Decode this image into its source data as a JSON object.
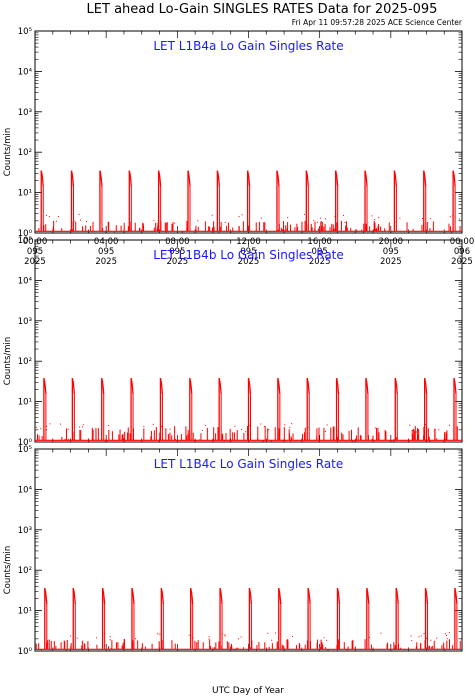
{
  "title": "LET ahead Lo-Gain SINGLES RATES Data for 2025-095",
  "timestamp": "Fri Apr 11 09:57:28 2025 ACE Science Center",
  "xlabel": "UTC Day of Year",
  "ylabel": "Counts/min",
  "colors": {
    "series": "#ff0000",
    "panel_title": "#1a1aff",
    "axes": "#000000"
  },
  "chart_data": [
    {
      "type": "line",
      "title": "LET L1B4a Lo Gain Singles Rate",
      "ylabel": "Counts/min",
      "yscale": "log",
      "ylim": [
        1,
        100000
      ],
      "xlim": [
        0,
        24
      ],
      "ytick_labels": [
        "10⁰",
        "10¹",
        "10²",
        "10³",
        "10⁴",
        "10⁵"
      ],
      "x_tick_labels": [
        [
          "00:00",
          "095",
          "2025"
        ],
        [
          "04:00",
          "095",
          "2025"
        ],
        [
          "08:00",
          "095",
          "2025"
        ],
        [
          "12:00",
          "095",
          "2025"
        ],
        [
          "16:00",
          "095",
          "2025"
        ],
        [
          "20:00",
          "095",
          "2025"
        ],
        [
          "00:00",
          "096",
          "2025"
        ]
      ],
      "spike_hours": [
        0.35,
        2.05,
        3.65,
        5.3,
        6.95,
        8.6,
        10.25,
        11.95,
        13.6,
        15.25,
        16.9,
        18.55,
        20.2,
        21.85,
        23.5
      ],
      "spike_peak": 35,
      "baseline": 1.1,
      "noise_peak": 2.0
    },
    {
      "type": "line",
      "title": "LET L1B4b Lo Gain Singles Rate",
      "ylabel": "Counts/min",
      "yscale": "log",
      "ylim": [
        1,
        100000
      ],
      "xlim": [
        0,
        24
      ],
      "ytick_labels": [
        "10⁰",
        "10¹",
        "10²",
        "10³",
        "10⁴",
        "10⁵"
      ],
      "x_tick_labels": [],
      "spike_hours": [
        0.5,
        2.1,
        3.75,
        5.4,
        7.05,
        8.7,
        10.35,
        12.0,
        13.65,
        15.3,
        16.95,
        18.6,
        20.25,
        21.9,
        23.55
      ],
      "spike_peak": 38,
      "baseline": 1.1,
      "noise_peak": 2.5
    },
    {
      "type": "line",
      "title": "LET L1B4c Lo Gain Singles Rate",
      "ylabel": "Counts/min",
      "yscale": "log",
      "ylim": [
        1,
        100000
      ],
      "xlim": [
        0,
        24
      ],
      "ytick_labels": [
        "10⁰",
        "10¹",
        "10²",
        "10³",
        "10⁴",
        "10⁵"
      ],
      "x_tick_labels": [],
      "spike_hours": [
        0.55,
        2.15,
        3.8,
        5.45,
        7.1,
        8.75,
        10.4,
        12.05,
        13.7,
        15.35,
        17.0,
        18.65,
        20.3,
        21.95,
        23.6
      ],
      "spike_peak": 36,
      "baseline": 1.1,
      "noise_peak": 2.0
    }
  ]
}
